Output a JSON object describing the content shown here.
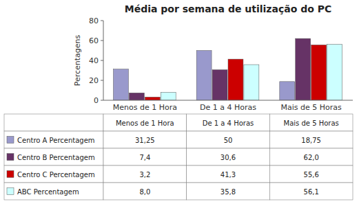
{
  "chart_data": {
    "type": "bar",
    "title": "Média por semana de utilização do PC",
    "ylabel": "Percentagens",
    "categories": [
      "Menos de 1 Hora",
      "De 1 a 4 Horas",
      "Mais de 5 Horas"
    ],
    "series": [
      {
        "name": "Centro A Percentagem",
        "color": "#9999cc",
        "values": [
          31.25,
          50,
          18.75
        ],
        "value_labels": [
          "31,25",
          "50",
          "18,75"
        ]
      },
      {
        "name": "Centro B Percentagem",
        "color": "#663366",
        "values": [
          7.4,
          30.6,
          62.0
        ],
        "value_labels": [
          "7,4",
          "30,6",
          "62,0"
        ]
      },
      {
        "name": "Centro C Percentagem",
        "color": "#cc0000",
        "values": [
          3.2,
          41.3,
          55.6
        ],
        "value_labels": [
          "3,2",
          "41,3",
          "55,6"
        ]
      },
      {
        "name": "ABC Percentagem",
        "color": "#ccffff",
        "values": [
          8.0,
          35.8,
          56.1
        ],
        "value_labels": [
          "8,0",
          "35,8",
          "56,1"
        ]
      }
    ],
    "ylim": [
      0,
      80
    ],
    "yticks": [
      0,
      20,
      40,
      60,
      80
    ],
    "grid": false
  }
}
